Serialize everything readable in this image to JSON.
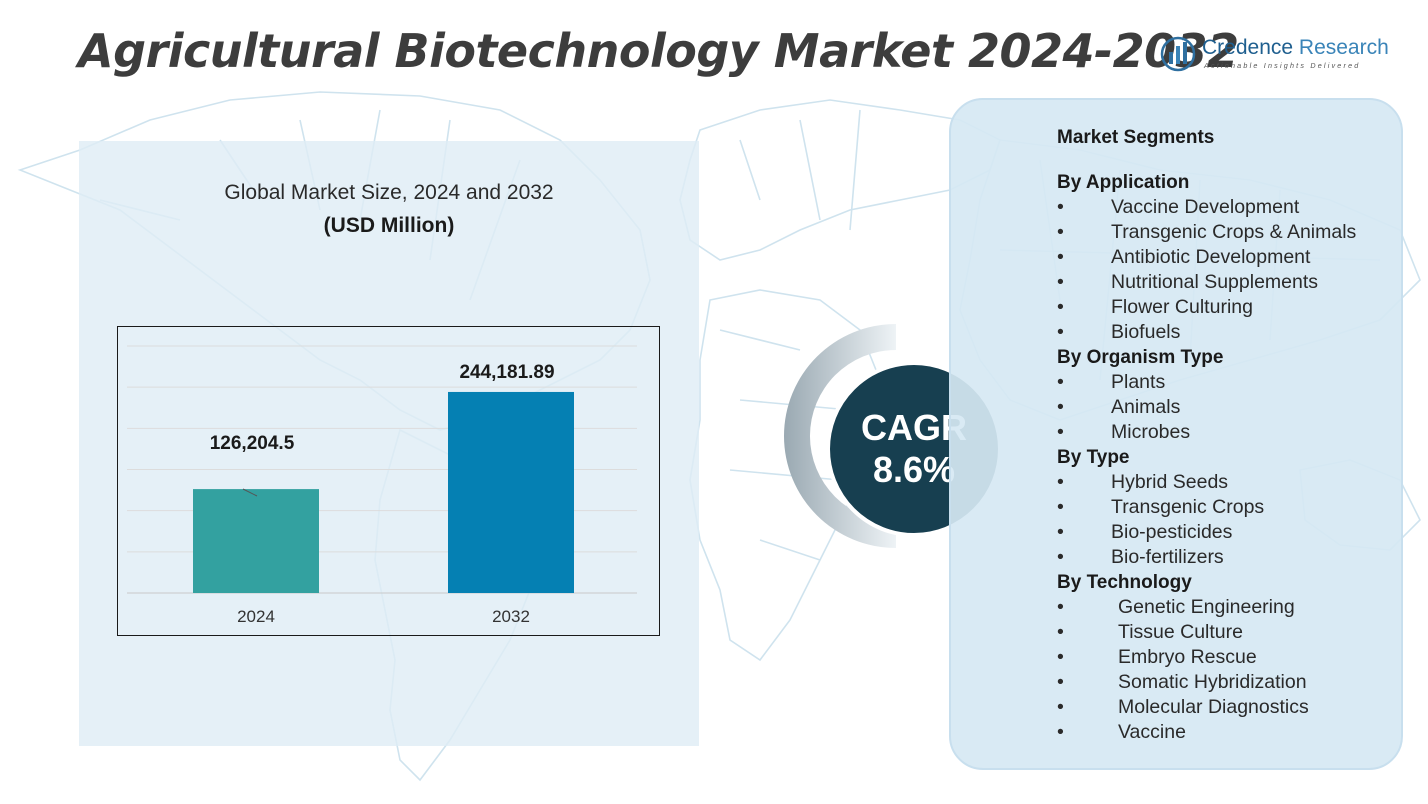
{
  "title": "Agricultural Biotechnology Market 2024-2032",
  "logo": {
    "name_first": "Credence",
    "name_second": " Research",
    "tagline": "Actionable Insights Delivered"
  },
  "chart_panel": {
    "subtitle": "Global Market Size, 2024 and 2032",
    "unit": "(USD Million)"
  },
  "chart_data": {
    "type": "bar",
    "categories": [
      "2024",
      "2032"
    ],
    "values": [
      126204.5,
      244181.89
    ],
    "data_labels": [
      "126,204.5",
      "244,181.89"
    ],
    "colors": [
      "#33a1a0",
      "#0580b3"
    ],
    "title": "Global Market Size, 2024 and 2032",
    "ylabel": "(USD Million)",
    "ylim": [
      0,
      300000
    ],
    "grid": true
  },
  "cagr": {
    "label": "CAGR",
    "value": "8.6%"
  },
  "segments": {
    "heading": "Market Segments",
    "groups": [
      {
        "title": "By Application",
        "items": [
          "Vaccine Development",
          "Transgenic Crops & Animals",
          "Antibiotic Development",
          "Nutritional Supplements",
          "Flower Culturing",
          "Biofuels"
        ]
      },
      {
        "title": "By Organism Type",
        "items": [
          "Plants",
          "Animals",
          "Microbes"
        ]
      },
      {
        "title": "By Type",
        "items": [
          "Hybrid Seeds",
          "Transgenic Crops",
          "Bio-pesticides",
          "Bio-fertilizers"
        ]
      },
      {
        "title": "By Technology",
        "items": [
          "Genetic Engineering",
          "Tissue Culture",
          "Embryo Rescue",
          "Somatic Hybridization",
          "Molecular Diagnostics",
          "Vaccine"
        ]
      }
    ]
  }
}
